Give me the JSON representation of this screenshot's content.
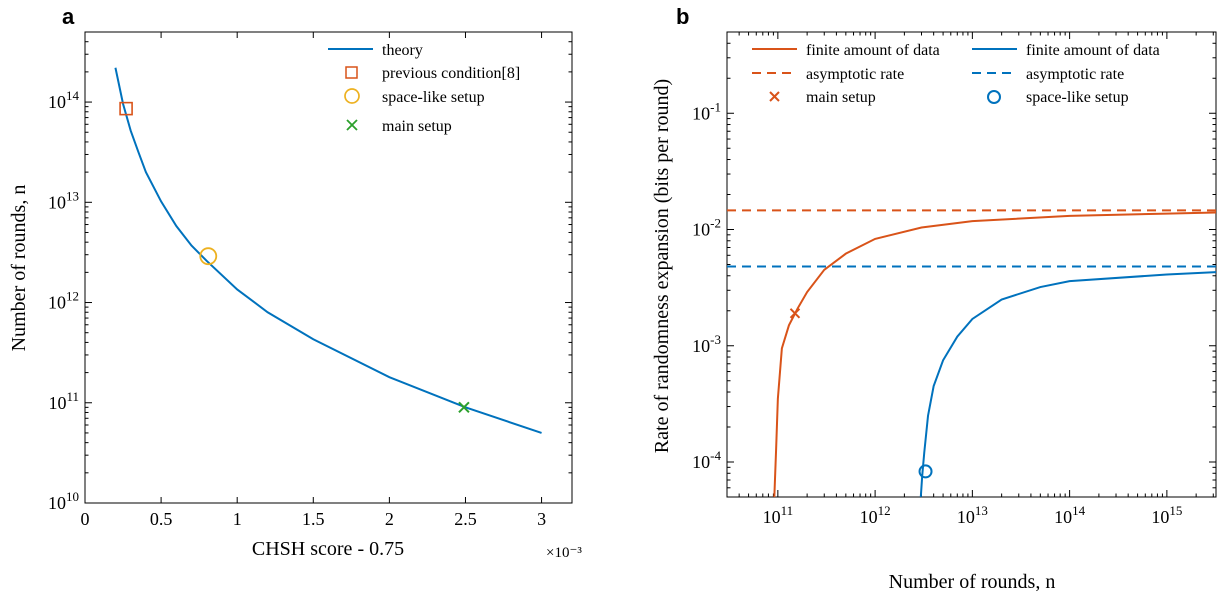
{
  "chart_data": [
    {
      "panel_label": "a",
      "type": "line",
      "xlabel": "CHSH score - 0.75",
      "ylabel": "Number of rounds, n",
      "x_multiplier": "×10⁻³",
      "xlim": [
        0,
        3.2
      ],
      "ylim": [
        10000000000.0,
        500000000000000.0
      ],
      "yscale": "log",
      "xticks": [
        {
          "v": 0,
          "label": "0"
        },
        {
          "v": 0.5,
          "label": "0.5"
        },
        {
          "v": 1,
          "label": "1"
        },
        {
          "v": 1.5,
          "label": "1.5"
        },
        {
          "v": 2,
          "label": "2"
        },
        {
          "v": 2.5,
          "label": "2.5"
        },
        {
          "v": 3,
          "label": "3"
        }
      ],
      "yticks": [
        {
          "v": 10000000000.0,
          "base": "10",
          "exp": "10"
        },
        {
          "v": 100000000000.0,
          "base": "10",
          "exp": "11"
        },
        {
          "v": 1000000000000.0,
          "base": "10",
          "exp": "12"
        },
        {
          "v": 10000000000000.0,
          "base": "10",
          "exp": "13"
        },
        {
          "v": 100000000000000.0,
          "base": "10",
          "exp": "14"
        }
      ],
      "legend_position": "top-right",
      "series": [
        {
          "name": "theory",
          "color": "#0072BD",
          "style": "solid",
          "x": [
            0.2,
            0.25,
            0.3,
            0.35,
            0.4,
            0.5,
            0.6,
            0.7,
            0.8,
            1.0,
            1.2,
            1.5,
            2.0,
            2.5,
            3.0
          ],
          "y": [
            220000000000000.0,
            96000000000000.0,
            52000000000000.0,
            32000000000000.0,
            20000000000000.0,
            10200000000000.0,
            5800000000000.0,
            3700000000000.0,
            2600000000000.0,
            1350000000000.0,
            800000000000.0,
            430000000000.0,
            180000000000.0,
            90000000000.0,
            50000000000.0
          ]
        }
      ],
      "markers": [
        {
          "name": "previous condition[8]",
          "marker": "square",
          "color": "#D95319",
          "x": 0.27,
          "y": 86000000000000.0
        },
        {
          "name": "space-like setup",
          "marker": "circle",
          "color": "#EDB120",
          "x": 0.81,
          "y": 2900000000000.0
        },
        {
          "name": "main setup",
          "marker": "x",
          "color": "#2CA02C",
          "x": 2.49,
          "y": 90000000000.0
        }
      ]
    },
    {
      "panel_label": "b",
      "type": "line",
      "xlabel": "Number of rounds, n",
      "ylabel": "Rate of randomness expansion (bits per round)",
      "xscale": "log",
      "yscale": "log",
      "xlim": [
        30000000000.0,
        3200000000000000.0
      ],
      "ylim": [
        5e-05,
        0.5
      ],
      "xticks": [
        {
          "v": 100000000000.0,
          "base": "10",
          "exp": "11"
        },
        {
          "v": 1000000000000.0,
          "base": "10",
          "exp": "12"
        },
        {
          "v": 10000000000000.0,
          "base": "10",
          "exp": "13"
        },
        {
          "v": 100000000000000.0,
          "base": "10",
          "exp": "14"
        },
        {
          "v": 1000000000000000.0,
          "base": "10",
          "exp": "15"
        }
      ],
      "yticks": [
        {
          "v": 0.0001,
          "base": "10",
          "exp": "-4"
        },
        {
          "v": 0.001,
          "base": "10",
          "exp": "-3"
        },
        {
          "v": 0.01,
          "base": "10",
          "exp": "-2"
        },
        {
          "v": 0.1,
          "base": "10",
          "exp": "-1"
        }
      ],
      "legend_position": "top",
      "series": [
        {
          "name": "finite amount of data",
          "color": "#D95319",
          "style": "solid",
          "x": [
            92000000000.0,
            96000000000.0,
            100000000000.0,
            110000000000.0,
            130000000000.0,
            160000000000.0,
            200000000000.0,
            300000000000.0,
            500000000000.0,
            1000000000000.0,
            3000000000000.0,
            10000000000000.0,
            100000000000000.0,
            1000000000000000.0,
            3200000000000000.0
          ],
          "y": [
            5e-05,
            0.00013,
            0.00035,
            0.00095,
            0.0015,
            0.0021,
            0.0029,
            0.0045,
            0.0062,
            0.0083,
            0.0104,
            0.0118,
            0.0131,
            0.0137,
            0.014
          ]
        },
        {
          "name": "asymptotic rate",
          "color": "#D95319",
          "style": "dashed",
          "x": [
            30000000000.0,
            3200000000000000.0
          ],
          "y": [
            0.0146,
            0.0146
          ]
        },
        {
          "name": "finite amount of data",
          "color": "#0072BD",
          "style": "solid",
          "x": [
            2950000000000.0,
            3050000000000.0,
            3200000000000.0,
            3500000000000.0,
            4000000000000.0,
            5000000000000.0,
            7000000000000.0,
            10000000000000.0,
            20000000000000.0,
            50000000000000.0,
            100000000000000.0,
            1000000000000000.0,
            3200000000000000.0
          ],
          "y": [
            5e-05,
            7.6e-05,
            0.00012,
            0.00025,
            0.00045,
            0.00075,
            0.0012,
            0.0017,
            0.0025,
            0.0032,
            0.0036,
            0.0041,
            0.0043
          ]
        },
        {
          "name": "asymptotic rate",
          "color": "#0072BD",
          "style": "dashed",
          "x": [
            30000000000.0,
            3200000000000000.0
          ],
          "y": [
            0.0048,
            0.0048
          ]
        }
      ],
      "markers": [
        {
          "name": "main setup",
          "marker": "x",
          "color": "#D95319",
          "x": 150000000000.0,
          "y": 0.0019
        },
        {
          "name": "space-like setup",
          "marker": "circle",
          "color": "#0072BD",
          "x": 3300000000000.0,
          "y": 8.3e-05
        }
      ]
    }
  ]
}
